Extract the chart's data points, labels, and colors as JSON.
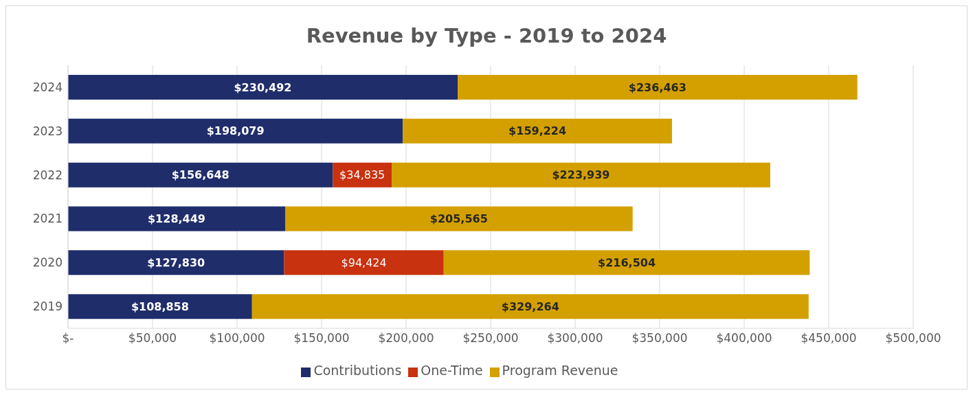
{
  "chart_data": {
    "type": "bar",
    "orientation": "horizontal",
    "stacked": true,
    "title": "Revenue by Type - 2019 to 2024",
    "categories": [
      "2024",
      "2023",
      "2022",
      "2021",
      "2020",
      "2019"
    ],
    "series": [
      {
        "name": "Contributions",
        "color": "#1f2d6b",
        "values": [
          230492,
          198079,
          156648,
          128449,
          127830,
          108858
        ],
        "value_labels": [
          "$230,492",
          "$198,079",
          "$156,648",
          "$128,449",
          "$127,830",
          "$108,858"
        ]
      },
      {
        "name": "One-Time",
        "color": "#c8320f",
        "values": [
          null,
          null,
          34835,
          null,
          94424,
          null
        ],
        "value_labels": [
          null,
          null,
          "$34,835",
          null,
          "$94,424",
          null
        ]
      },
      {
        "name": "Program Revenue",
        "color": "#d4a000",
        "values": [
          236463,
          159224,
          223939,
          205565,
          216504,
          329264
        ],
        "value_labels": [
          "$236,463",
          "$159,224",
          "$223,939",
          "$205,565",
          "$216,504",
          "$329,264"
        ]
      }
    ],
    "xlim": [
      0,
      500000
    ],
    "xticks": [
      {
        "value": 0,
        "label": "$-"
      },
      {
        "value": 50000,
        "label": "$50,000"
      },
      {
        "value": 100000,
        "label": "$100,000"
      },
      {
        "value": 150000,
        "label": "$150,000"
      },
      {
        "value": 200000,
        "label": "$200,000"
      },
      {
        "value": 250000,
        "label": "$250,000"
      },
      {
        "value": 300000,
        "label": "$300,000"
      },
      {
        "value": 350000,
        "label": "$350,000"
      },
      {
        "value": 400000,
        "label": "$400,000"
      },
      {
        "value": 450000,
        "label": "$450,000"
      },
      {
        "value": 500000,
        "label": "$500,000"
      }
    ],
    "grid": "x",
    "legend": "bottom"
  }
}
